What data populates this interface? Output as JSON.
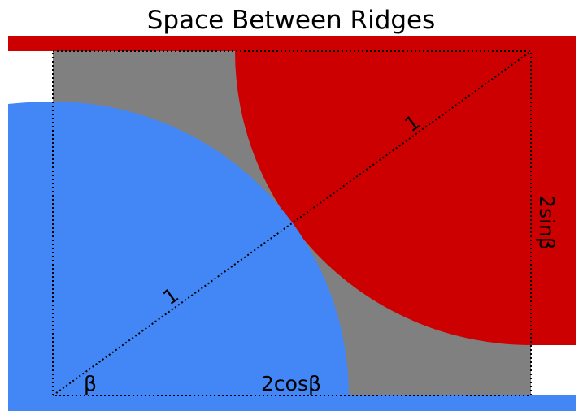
{
  "title": "Space Between Ridges",
  "labels": {
    "hyp_upper": "1",
    "hyp_lower": "1",
    "side_vertical": "2sinβ",
    "side_bottom": "2cosβ",
    "angle": "β"
  },
  "colors": {
    "background": "#ffffff",
    "gap": "#808080",
    "upper_ridge": "#cc0000",
    "lower_ridge": "#4287f5",
    "guide_lines": "#000000"
  }
}
